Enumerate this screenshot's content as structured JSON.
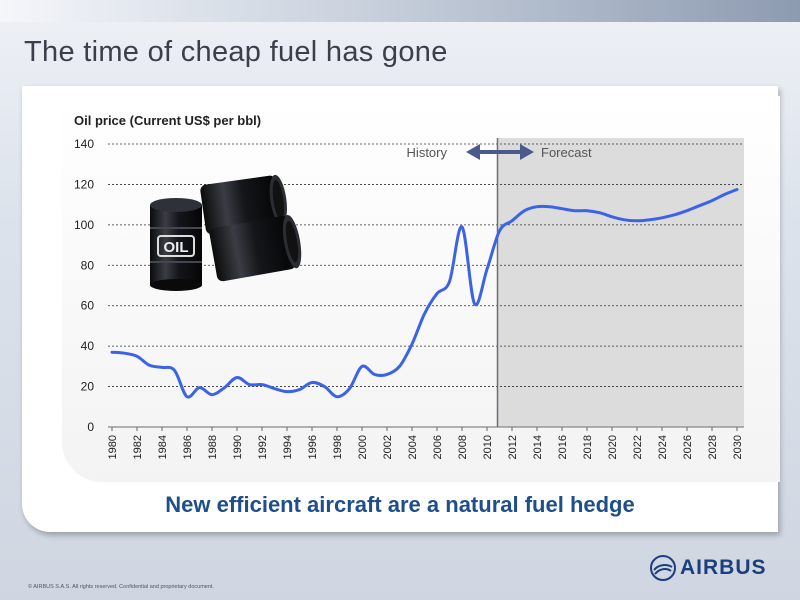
{
  "slide": {
    "title": "The time of cheap fuel has gone",
    "subtitle": "New efficient aircraft are a natural fuel hedge",
    "footer": "© AIRBUS S.A.S. All rights reserved. Confidential and proprietary document.",
    "logo_text": "AIRBUS"
  },
  "oil_illustration": {
    "label": "OIL"
  },
  "chart_data": {
    "type": "line",
    "ylabel": "Oil price (Current US$ per bbl)",
    "xlabel": "",
    "ylim": [
      0,
      140
    ],
    "yticks": [
      0,
      20,
      40,
      60,
      80,
      100,
      120,
      140
    ],
    "xlim": [
      1980,
      2030
    ],
    "xticks": [
      1980,
      1982,
      1984,
      1986,
      1988,
      1990,
      1992,
      1994,
      1996,
      1998,
      2000,
      2002,
      2004,
      2006,
      2008,
      2010,
      2012,
      2014,
      2016,
      2018,
      2020,
      2022,
      2024,
      2026,
      2028,
      2030
    ],
    "grid": "horizontal dashed",
    "forecast_start": 2011,
    "annotations": {
      "history": "History",
      "forecast": "Forecast"
    },
    "colors": {
      "line": "#3b63e6",
      "forecast_bg": "#dcdcdc",
      "divider": "#6b6f78",
      "arrow": "#4a5a8a"
    },
    "series": [
      {
        "name": "",
        "x": [
          1980,
          1981,
          1982,
          1983,
          1984,
          1985,
          1986,
          1987,
          1988,
          1989,
          1990,
          1991,
          1992,
          1993,
          1994,
          1995,
          1996,
          1997,
          1998,
          1999,
          2000,
          2001,
          2002,
          2003,
          2004,
          2005,
          2006,
          2007,
          2008,
          2009,
          2010,
          2011,
          2012,
          2013,
          2014,
          2015,
          2016,
          2017,
          2018,
          2019,
          2020,
          2021,
          2022,
          2023,
          2024,
          2025,
          2026,
          2027,
          2028,
          2029,
          2030
        ],
        "values": [
          37,
          36.5,
          35,
          30.5,
          29.5,
          28,
          15,
          19.5,
          16,
          19.5,
          24.5,
          21,
          21,
          19,
          17.5,
          18.5,
          22,
          20,
          15,
          19,
          30,
          26,
          26,
          30,
          41,
          56,
          66,
          72,
          99,
          61,
          78,
          97,
          102,
          107,
          109,
          109,
          108,
          107,
          107,
          106,
          104,
          102.5,
          102,
          102.5,
          103.5,
          105,
          107,
          109.5,
          112,
          115,
          117.5
        ]
      }
    ]
  }
}
